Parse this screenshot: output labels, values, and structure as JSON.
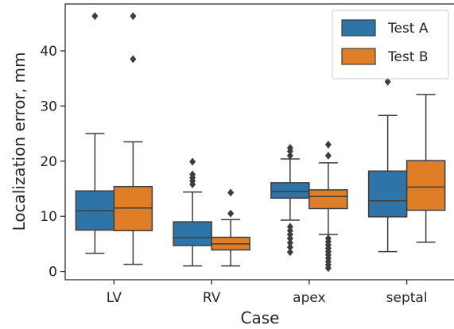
{
  "chart_data": {
    "type": "box",
    "xlabel": "Case",
    "ylabel": "Localization error, mm",
    "categories": [
      "LV",
      "RV",
      "apex",
      "septal"
    ],
    "ylim": [
      -1.5,
      48.5
    ],
    "yticks": [
      0,
      10,
      20,
      30,
      40
    ],
    "grid": false,
    "legend_position": "top-right",
    "series": [
      {
        "name": "Test A",
        "color": "#2F74A6",
        "boxes": [
          {
            "category": "LV",
            "whisker_low": 3.3,
            "q1": 7.5,
            "median": 11.0,
            "q3": 14.6,
            "whisker_high": 25.0,
            "outliers": [
              46.3
            ]
          },
          {
            "category": "RV",
            "whisker_low": 1.0,
            "q1": 4.7,
            "median": 6.1,
            "q3": 9.0,
            "whisker_high": 14.4,
            "outliers": [
              15.8,
              16.4,
              17.0,
              17.6,
              19.9
            ]
          },
          {
            "category": "apex",
            "whisker_low": 9.3,
            "q1": 13.3,
            "median": 14.5,
            "q3": 16.1,
            "whisker_high": 20.4,
            "outliers": [
              21.0,
              21.8,
              22.4,
              3.5,
              4.4,
              5.2,
              6.0,
              6.7,
              7.4,
              8.1
            ]
          },
          {
            "category": "septal",
            "whisker_low": 3.6,
            "q1": 9.9,
            "median": 12.8,
            "q3": 18.2,
            "whisker_high": 28.3,
            "outliers": [
              34.4
            ]
          }
        ]
      },
      {
        "name": "Test B",
        "color": "#E07E28",
        "boxes": [
          {
            "category": "LV",
            "whisker_low": 1.3,
            "q1": 7.4,
            "median": 11.5,
            "q3": 15.4,
            "whisker_high": 23.5,
            "outliers": [
              38.5,
              46.3
            ]
          },
          {
            "category": "RV",
            "whisker_low": 1.0,
            "q1": 3.9,
            "median": 5.0,
            "q3": 6.2,
            "whisker_high": 9.4,
            "outliers": [
              10.5,
              14.3
            ]
          },
          {
            "category": "apex",
            "whisker_low": 6.7,
            "q1": 11.4,
            "median": 13.6,
            "q3": 14.8,
            "whisker_high": 19.7,
            "outliers": [
              21.0,
              23.0,
              0.6,
              1.2,
              1.8,
              2.4,
              3.0,
              3.6,
              4.2,
              4.8,
              5.4,
              6.0
            ]
          },
          {
            "category": "septal",
            "whisker_low": 5.3,
            "q1": 11.1,
            "median": 15.3,
            "q3": 20.1,
            "whisker_high": 32.1,
            "outliers": []
          }
        ]
      }
    ]
  }
}
